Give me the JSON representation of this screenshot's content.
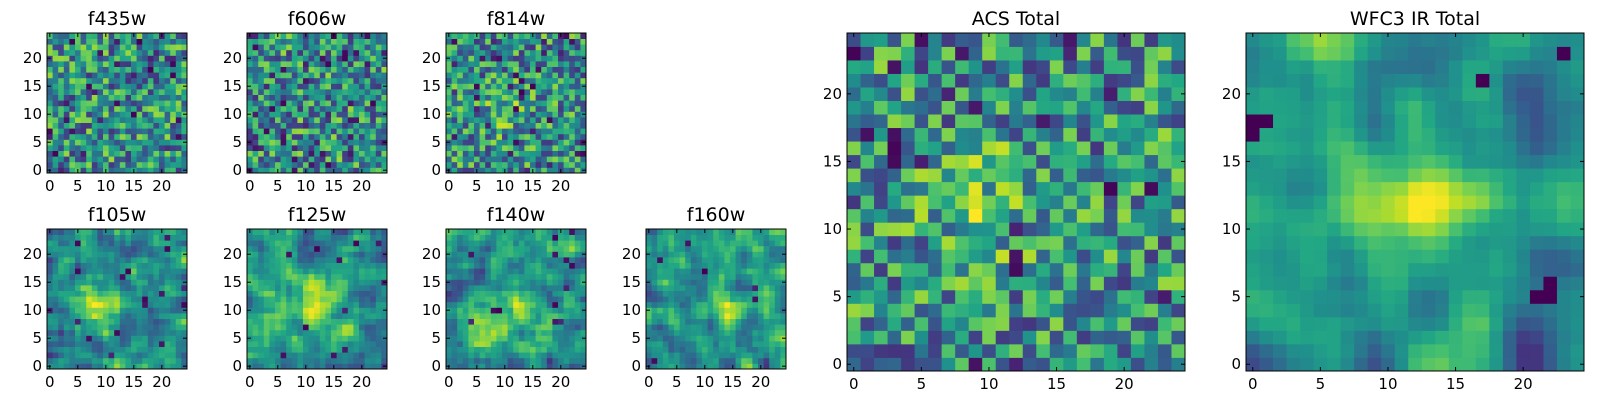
{
  "figure": {
    "note": "Grid of pixel-stamp heatmaps (viridis colormap)"
  },
  "chart_data": [
    {
      "type": "heatmap",
      "title": "f435w",
      "colormap": "viridis",
      "xlim": [
        -0.5,
        24.5
      ],
      "ylim": [
        -0.5,
        24.5
      ],
      "xticks": [
        0,
        5,
        10,
        15,
        20
      ],
      "yticks": [
        0,
        5,
        10,
        15,
        20
      ],
      "grid": false,
      "description": "uniform noise",
      "data_summary": {
        "rows": 25,
        "cols": 25,
        "pattern": "random noise"
      }
    },
    {
      "type": "heatmap",
      "title": "f606w",
      "colormap": "viridis",
      "xlim": [
        -0.5,
        24.5
      ],
      "ylim": [
        -0.5,
        24.5
      ],
      "xticks": [
        0,
        5,
        10,
        15,
        20
      ],
      "yticks": [
        0,
        5,
        10,
        15,
        20
      ],
      "grid": false,
      "data_summary": {
        "rows": 25,
        "cols": 25,
        "pattern": "random noise"
      }
    },
    {
      "type": "heatmap",
      "title": "f814w",
      "colormap": "viridis",
      "xlim": [
        -0.5,
        24.5
      ],
      "ylim": [
        -0.5,
        24.5
      ],
      "xticks": [
        0,
        5,
        10,
        15,
        20
      ],
      "yticks": [
        0,
        5,
        10,
        15,
        20
      ],
      "grid": false,
      "data_summary": {
        "rows": 25,
        "cols": 25,
        "pattern": "random noise, faint central brightening"
      }
    },
    {
      "type": "heatmap",
      "title": "f105w",
      "colormap": "viridis",
      "xlim": [
        -0.5,
        24.5
      ],
      "ylim": [
        -0.5,
        24.5
      ],
      "xticks": [
        0,
        5,
        10,
        15,
        20
      ],
      "yticks": [
        0,
        5,
        10,
        15,
        20
      ],
      "grid": false,
      "data_summary": {
        "rows": 25,
        "cols": 25,
        "pattern": "smooth noise, bright blob near center (~10,11)"
      }
    },
    {
      "type": "heatmap",
      "title": "f125w",
      "colormap": "viridis",
      "xlim": [
        -0.5,
        24.5
      ],
      "ylim": [
        -0.5,
        24.5
      ],
      "xticks": [
        0,
        5,
        10,
        15,
        20
      ],
      "yticks": [
        0,
        5,
        10,
        15,
        20
      ],
      "grid": false,
      "data_summary": {
        "rows": 25,
        "cols": 25,
        "pattern": "smooth noise, bright blob near center (~12,11)"
      }
    },
    {
      "type": "heatmap",
      "title": "f140w",
      "colormap": "viridis",
      "xlim": [
        -0.5,
        24.5
      ],
      "ylim": [
        -0.5,
        24.5
      ],
      "xticks": [
        0,
        5,
        10,
        15,
        20
      ],
      "yticks": [
        0,
        5,
        10,
        15,
        20
      ],
      "grid": false,
      "data_summary": {
        "rows": 25,
        "cols": 25,
        "pattern": "smooth noise, bright patches"
      }
    },
    {
      "type": "heatmap",
      "title": "f160w",
      "colormap": "viridis",
      "xlim": [
        -0.5,
        24.5
      ],
      "ylim": [
        -0.5,
        24.5
      ],
      "xticks": [
        0,
        5,
        10,
        15,
        20
      ],
      "yticks": [
        0,
        5,
        10,
        15,
        20
      ],
      "grid": false,
      "data_summary": {
        "rows": 25,
        "cols": 25,
        "pattern": "smooth noise, bright blob near (14,11)"
      }
    },
    {
      "type": "heatmap",
      "title": "ACS Total",
      "colormap": "viridis",
      "xlim": [
        -0.5,
        24.5
      ],
      "ylim": [
        -0.5,
        24.5
      ],
      "xticks": [
        0,
        5,
        10,
        15,
        20
      ],
      "yticks": [
        0,
        5,
        10,
        15,
        20
      ],
      "grid": false,
      "data_summary": {
        "rows": 25,
        "cols": 25,
        "pattern": "noise, brighter around (8-10,12)"
      }
    },
    {
      "type": "heatmap",
      "title": "WFC3 IR Total",
      "colormap": "viridis",
      "xlim": [
        -0.5,
        24.5
      ],
      "ylim": [
        -0.5,
        24.5
      ],
      "xticks": [
        0,
        5,
        10,
        15,
        20
      ],
      "yticks": [
        0,
        5,
        10,
        15,
        20
      ],
      "grid": false,
      "data_summary": {
        "rows": 25,
        "cols": 25,
        "pattern": "smooth, bright diagonal blob near (13,12), dark spots at (0-1,17-18),(21-22,5-6),(17,21),(23,23)"
      }
    }
  ]
}
